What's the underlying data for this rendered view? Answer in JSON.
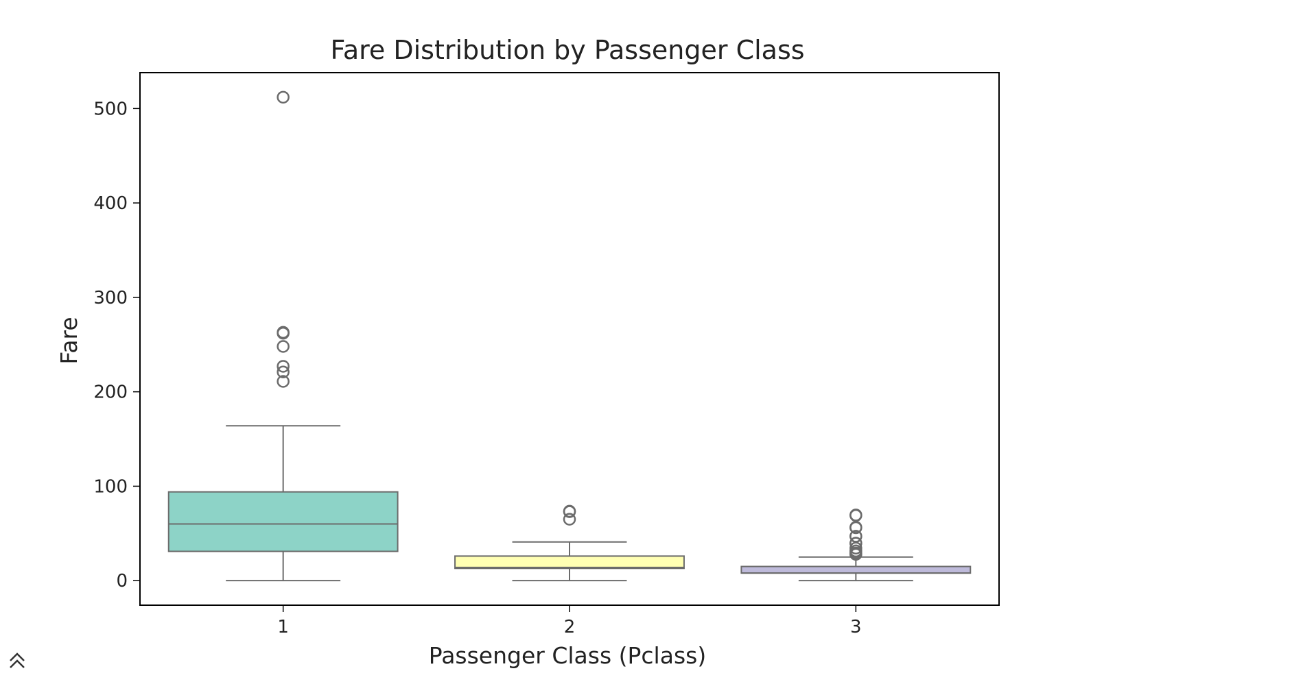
{
  "chart_data": {
    "type": "box",
    "title": "Fare Distribution by Passenger Class",
    "xlabel": "Passenger Class (Pclass)",
    "ylabel": "Fare",
    "categories": [
      "1",
      "2",
      "3"
    ],
    "ylim": [
      -26,
      538
    ],
    "yticks": [
      0,
      100,
      200,
      300,
      400,
      500
    ],
    "grid": false,
    "boxes": [
      {
        "category": "1",
        "color": "#8dd3c7",
        "whisker_low": 0,
        "q1": 31,
        "median": 60,
        "q3": 94,
        "whisker_high": 164,
        "outliers": [
          512,
          263,
          262,
          248,
          227,
          221,
          211
        ]
      },
      {
        "category": "2",
        "color": "#ffffb3",
        "whisker_low": 0,
        "q1": 13,
        "median": 14,
        "q3": 26,
        "whisker_high": 41,
        "outliers": [
          73.5,
          73,
          65
        ]
      },
      {
        "category": "3",
        "color": "#bebada",
        "whisker_low": 0,
        "q1": 8,
        "median": 8,
        "q3": 15,
        "whisker_high": 25,
        "outliers": [
          69.5,
          69,
          56.5,
          56,
          47,
          46.9,
          39.7,
          39.6,
          34.4,
          31.3,
          31.4,
          29.1,
          29.1,
          27.9,
          27.9
        ]
      }
    ]
  },
  "ui": {
    "scroll_top_icon": "double-chevron-up-icon"
  }
}
